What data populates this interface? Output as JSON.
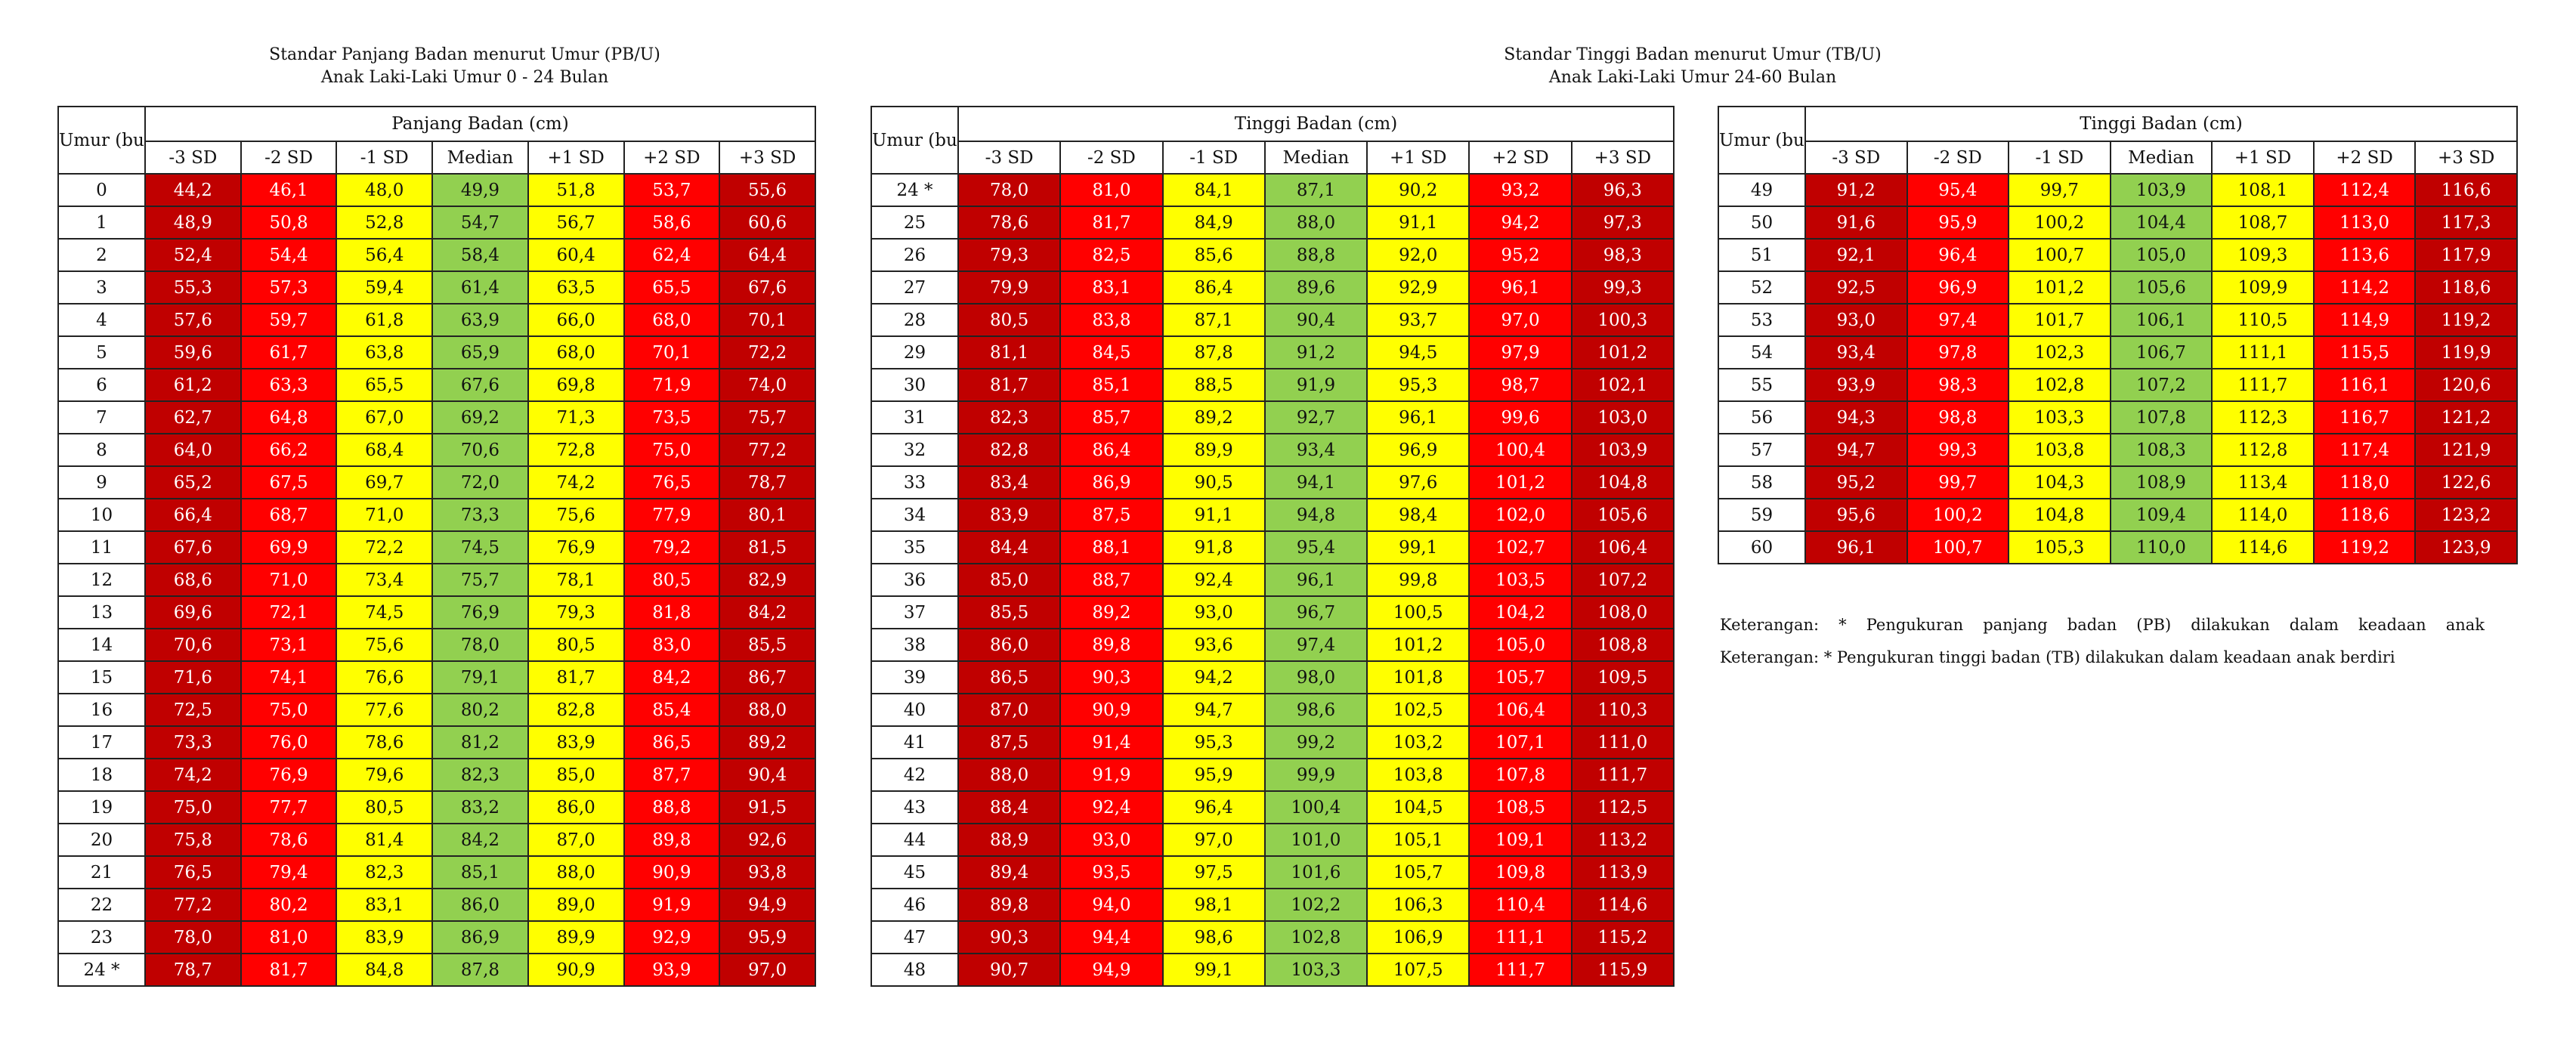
{
  "left": {
    "title_line1": "Standar Panjang Badan menurut Umur (PB/U)",
    "title_line2": "Anak Laki-Laki Umur 0 - 24 Bulan",
    "age_header": "Umur (bulan)",
    "group_header": "Panjang Badan (cm)",
    "columns": [
      "-3 SD",
      "-2 SD",
      "-1 SD",
      "Median",
      "+1 SD",
      "+2 SD",
      "+3 SD"
    ],
    "rows": [
      [
        "0",
        "44,2",
        "46,1",
        "48,0",
        "49,9",
        "51,8",
        "53,7",
        "55,6"
      ],
      [
        "1",
        "48,9",
        "50,8",
        "52,8",
        "54,7",
        "56,7",
        "58,6",
        "60,6"
      ],
      [
        "2",
        "52,4",
        "54,4",
        "56,4",
        "58,4",
        "60,4",
        "62,4",
        "64,4"
      ],
      [
        "3",
        "55,3",
        "57,3",
        "59,4",
        "61,4",
        "63,5",
        "65,5",
        "67,6"
      ],
      [
        "4",
        "57,6",
        "59,7",
        "61,8",
        "63,9",
        "66,0",
        "68,0",
        "70,1"
      ],
      [
        "5",
        "59,6",
        "61,7",
        "63,8",
        "65,9",
        "68,0",
        "70,1",
        "72,2"
      ],
      [
        "6",
        "61,2",
        "63,3",
        "65,5",
        "67,6",
        "69,8",
        "71,9",
        "74,0"
      ],
      [
        "7",
        "62,7",
        "64,8",
        "67,0",
        "69,2",
        "71,3",
        "73,5",
        "75,7"
      ],
      [
        "8",
        "64,0",
        "66,2",
        "68,4",
        "70,6",
        "72,8",
        "75,0",
        "77,2"
      ],
      [
        "9",
        "65,2",
        "67,5",
        "69,7",
        "72,0",
        "74,2",
        "76,5",
        "78,7"
      ],
      [
        "10",
        "66,4",
        "68,7",
        "71,0",
        "73,3",
        "75,6",
        "77,9",
        "80,1"
      ],
      [
        "11",
        "67,6",
        "69,9",
        "72,2",
        "74,5",
        "76,9",
        "79,2",
        "81,5"
      ],
      [
        "12",
        "68,6",
        "71,0",
        "73,4",
        "75,7",
        "78,1",
        "80,5",
        "82,9"
      ],
      [
        "13",
        "69,6",
        "72,1",
        "74,5",
        "76,9",
        "79,3",
        "81,8",
        "84,2"
      ],
      [
        "14",
        "70,6",
        "73,1",
        "75,6",
        "78,0",
        "80,5",
        "83,0",
        "85,5"
      ],
      [
        "15",
        "71,6",
        "74,1",
        "76,6",
        "79,1",
        "81,7",
        "84,2",
        "86,7"
      ],
      [
        "16",
        "72,5",
        "75,0",
        "77,6",
        "80,2",
        "82,8",
        "85,4",
        "88,0"
      ],
      [
        "17",
        "73,3",
        "76,0",
        "78,6",
        "81,2",
        "83,9",
        "86,5",
        "89,2"
      ],
      [
        "18",
        "74,2",
        "76,9",
        "79,6",
        "82,3",
        "85,0",
        "87,7",
        "90,4"
      ],
      [
        "19",
        "75,0",
        "77,7",
        "80,5",
        "83,2",
        "86,0",
        "88,8",
        "91,5"
      ],
      [
        "20",
        "75,8",
        "78,6",
        "81,4",
        "84,2",
        "87,0",
        "89,8",
        "92,6"
      ],
      [
        "21",
        "76,5",
        "79,4",
        "82,3",
        "85,1",
        "88,0",
        "90,9",
        "93,8"
      ],
      [
        "22",
        "77,2",
        "80,2",
        "83,1",
        "86,0",
        "89,0",
        "91,9",
        "94,9"
      ],
      [
        "23",
        "78,0",
        "81,0",
        "83,9",
        "86,9",
        "89,9",
        "92,9",
        "95,9"
      ],
      [
        "24 *",
        "78,7",
        "81,7",
        "84,8",
        "87,8",
        "90,9",
        "93,9",
        "97,0"
      ]
    ]
  },
  "right": {
    "title_line1": "Standar Tinggi Badan menurut Umur (TB/U)",
    "title_line2": "Anak Laki-Laki Umur 24-60 Bulan",
    "age_header": "Umur (bulan)",
    "group_header": "Tinggi Badan (cm)",
    "columns": [
      "-3 SD",
      "-2 SD",
      "-1 SD",
      "Median",
      "+1 SD",
      "+2 SD",
      "+3 SD"
    ],
    "rows_a": [
      [
        "24 *",
        "78,0",
        "81,0",
        "84,1",
        "87,1",
        "90,2",
        "93,2",
        "96,3"
      ],
      [
        "25",
        "78,6",
        "81,7",
        "84,9",
        "88,0",
        "91,1",
        "94,2",
        "97,3"
      ],
      [
        "26",
        "79,3",
        "82,5",
        "85,6",
        "88,8",
        "92,0",
        "95,2",
        "98,3"
      ],
      [
        "27",
        "79,9",
        "83,1",
        "86,4",
        "89,6",
        "92,9",
        "96,1",
        "99,3"
      ],
      [
        "28",
        "80,5",
        "83,8",
        "87,1",
        "90,4",
        "93,7",
        "97,0",
        "100,3"
      ],
      [
        "29",
        "81,1",
        "84,5",
        "87,8",
        "91,2",
        "94,5",
        "97,9",
        "101,2"
      ],
      [
        "30",
        "81,7",
        "85,1",
        "88,5",
        "91,9",
        "95,3",
        "98,7",
        "102,1"
      ],
      [
        "31",
        "82,3",
        "85,7",
        "89,2",
        "92,7",
        "96,1",
        "99,6",
        "103,0"
      ],
      [
        "32",
        "82,8",
        "86,4",
        "89,9",
        "93,4",
        "96,9",
        "100,4",
        "103,9"
      ],
      [
        "33",
        "83,4",
        "86,9",
        "90,5",
        "94,1",
        "97,6",
        "101,2",
        "104,8"
      ],
      [
        "34",
        "83,9",
        "87,5",
        "91,1",
        "94,8",
        "98,4",
        "102,0",
        "105,6"
      ],
      [
        "35",
        "84,4",
        "88,1",
        "91,8",
        "95,4",
        "99,1",
        "102,7",
        "106,4"
      ],
      [
        "36",
        "85,0",
        "88,7",
        "92,4",
        "96,1",
        "99,8",
        "103,5",
        "107,2"
      ],
      [
        "37",
        "85,5",
        "89,2",
        "93,0",
        "96,7",
        "100,5",
        "104,2",
        "108,0"
      ],
      [
        "38",
        "86,0",
        "89,8",
        "93,6",
        "97,4",
        "101,2",
        "105,0",
        "108,8"
      ],
      [
        "39",
        "86,5",
        "90,3",
        "94,2",
        "98,0",
        "101,8",
        "105,7",
        "109,5"
      ],
      [
        "40",
        "87,0",
        "90,9",
        "94,7",
        "98,6",
        "102,5",
        "106,4",
        "110,3"
      ],
      [
        "41",
        "87,5",
        "91,4",
        "95,3",
        "99,2",
        "103,2",
        "107,1",
        "111,0"
      ],
      [
        "42",
        "88,0",
        "91,9",
        "95,9",
        "99,9",
        "103,8",
        "107,8",
        "111,7"
      ],
      [
        "43",
        "88,4",
        "92,4",
        "96,4",
        "100,4",
        "104,5",
        "108,5",
        "112,5"
      ],
      [
        "44",
        "88,9",
        "93,0",
        "97,0",
        "101,0",
        "105,1",
        "109,1",
        "113,2"
      ],
      [
        "45",
        "89,4",
        "93,5",
        "97,5",
        "101,6",
        "105,7",
        "109,8",
        "113,9"
      ],
      [
        "46",
        "89,8",
        "94,0",
        "98,1",
        "102,2",
        "106,3",
        "110,4",
        "114,6"
      ],
      [
        "47",
        "90,3",
        "94,4",
        "98,6",
        "102,8",
        "106,9",
        "111,1",
        "115,2"
      ],
      [
        "48",
        "90,7",
        "94,9",
        "99,1",
        "103,3",
        "107,5",
        "111,7",
        "115,9"
      ]
    ],
    "rows_b": [
      [
        "49",
        "91,2",
        "95,4",
        "99,7",
        "103,9",
        "108,1",
        "112,4",
        "116,6"
      ],
      [
        "50",
        "91,6",
        "95,9",
        "100,2",
        "104,4",
        "108,7",
        "113,0",
        "117,3"
      ],
      [
        "51",
        "92,1",
        "96,4",
        "100,7",
        "105,0",
        "109,3",
        "113,6",
        "117,9"
      ],
      [
        "52",
        "92,5",
        "96,9",
        "101,2",
        "105,6",
        "109,9",
        "114,2",
        "118,6"
      ],
      [
        "53",
        "93,0",
        "97,4",
        "101,7",
        "106,1",
        "110,5",
        "114,9",
        "119,2"
      ],
      [
        "54",
        "93,4",
        "97,8",
        "102,3",
        "106,7",
        "111,1",
        "115,5",
        "119,9"
      ],
      [
        "55",
        "93,9",
        "98,3",
        "102,8",
        "107,2",
        "111,7",
        "116,1",
        "120,6"
      ],
      [
        "56",
        "94,3",
        "98,8",
        "103,3",
        "107,8",
        "112,3",
        "116,7",
        "121,2"
      ],
      [
        "57",
        "94,7",
        "99,3",
        "103,8",
        "108,3",
        "112,8",
        "117,4",
        "121,9"
      ],
      [
        "58",
        "95,2",
        "99,7",
        "104,3",
        "108,9",
        "113,4",
        "118,0",
        "122,6"
      ],
      [
        "59",
        "95,6",
        "100,2",
        "104,8",
        "109,4",
        "114,0",
        "118,6",
        "123,2"
      ],
      [
        "60",
        "96,1",
        "100,7",
        "105,3",
        "110,0",
        "114,6",
        "119,2",
        "123,9"
      ]
    ]
  },
  "notes": {
    "note_1": "Keterangan: * Pengukuran panjang badan (PB) dilakukan dalam keadaan anak",
    "note_2": "Keterangan: * Pengukuran tinggi badan (TB) dilakukan dalam keadaan anak berdiri"
  },
  "colors": {
    "sd3": "#c00000",
    "sd2": "#ff0000",
    "sd1": "#ffff00",
    "median": "#92d050"
  }
}
